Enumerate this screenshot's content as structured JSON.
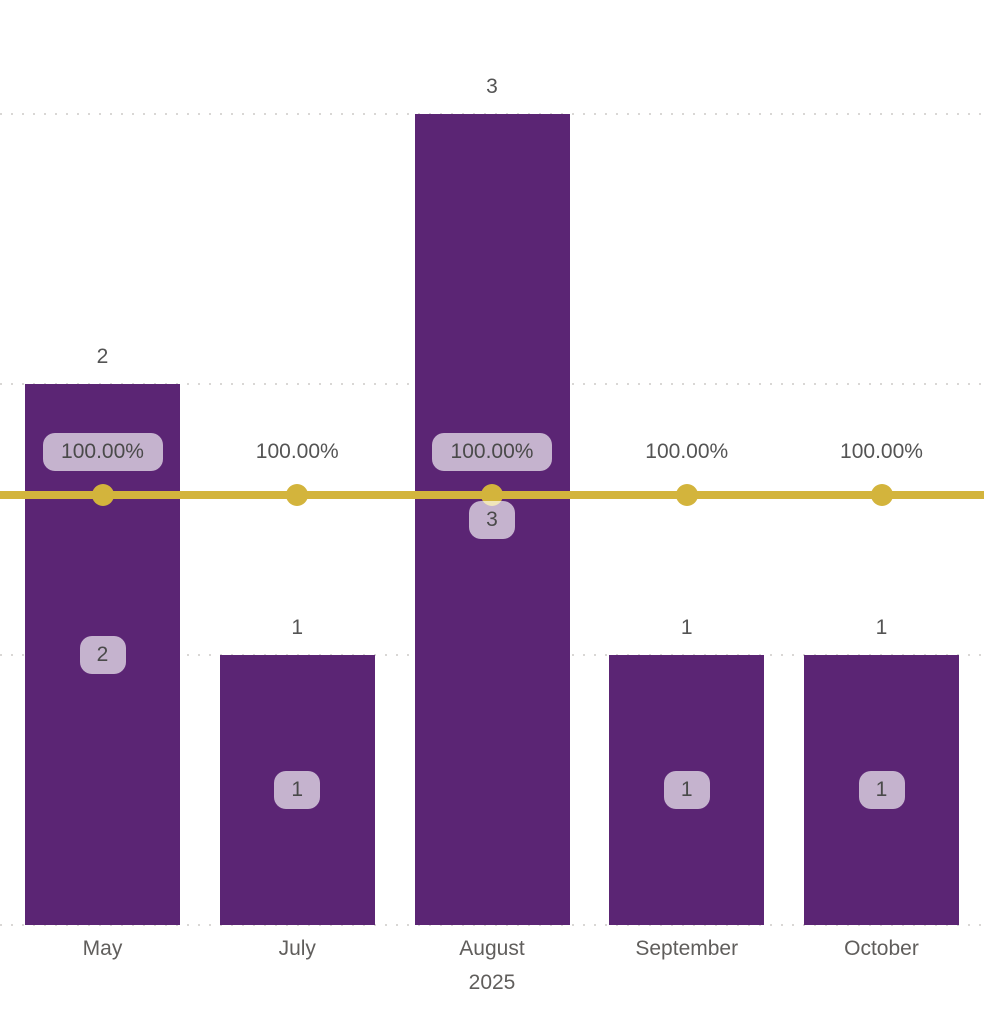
{
  "chart_data": {
    "type": "combo-bar-line",
    "title": "",
    "legend": "none",
    "categories": [
      "May",
      "July",
      "August",
      "September",
      "October"
    ],
    "category_sublabels": [
      "",
      "",
      "2025",
      "",
      ""
    ],
    "series": [
      {
        "name": "count-bars",
        "type": "bar",
        "color": "#5B2574",
        "values": [
          2,
          1,
          3,
          1,
          1
        ],
        "labels_outside": [
          "2",
          "1",
          "3",
          "1",
          "1"
        ],
        "labels_inside": [
          "2",
          "1",
          "3",
          "1",
          "1"
        ]
      },
      {
        "name": "percent-line",
        "type": "line",
        "color": "#D3B43C",
        "values": [
          100,
          100,
          100,
          100,
          100
        ],
        "labels": [
          "100.00%",
          "100.00%",
          "100.00%",
          "100.00%",
          "100.00%"
        ]
      }
    ],
    "ylim": [
      0,
      3
    ],
    "gridlines": [
      0,
      1,
      2,
      3
    ],
    "grid_style": "dotted",
    "secondary_line_percent": 100
  },
  "colors": {
    "bar": "#5B2574",
    "line": "#D3B43C",
    "gridline": "#D9D7D5",
    "value_text": "#545454",
    "axis_text": "#605E5C",
    "badge_bg": "rgba(255,255,255,0.65)",
    "badge_text": "#4A4A4A"
  }
}
